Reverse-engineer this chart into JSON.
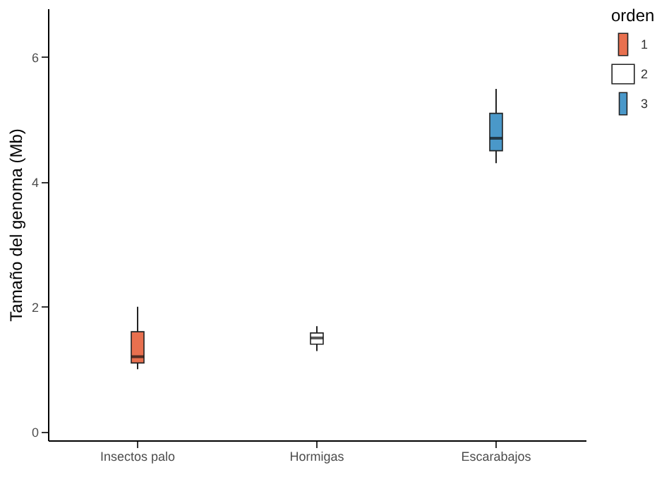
{
  "chart_data": {
    "type": "box",
    "ylabel": "Tamaño del genoma (Mb)",
    "legend_title": "orden",
    "categories": [
      "Insectos palo",
      "Hormigas",
      "Escarabajos"
    ],
    "ylim": [
      -0.14,
      6.78
    ],
    "yticks": [
      0,
      2,
      4,
      6
    ],
    "grid": false,
    "legend": "right",
    "series": [
      {
        "name": "1",
        "color": "#e8704f",
        "boxes": [
          {
            "low": 1.0,
            "q1": 1.1,
            "median": 1.2,
            "q3": 1.6,
            "high": 2.0
          },
          null,
          null
        ]
      },
      {
        "name": "2",
        "color": "#ffffff",
        "boxes": [
          null,
          {
            "low": 1.29,
            "q1": 1.4,
            "median": 1.5,
            "q3": 1.58,
            "high": 1.69
          },
          null
        ]
      },
      {
        "name": "3",
        "color": "#4a98c9",
        "boxes": [
          null,
          null,
          {
            "low": 4.3,
            "q1": 4.5,
            "median": 4.7,
            "q3": 5.1,
            "high": 5.49
          }
        ]
      }
    ]
  }
}
